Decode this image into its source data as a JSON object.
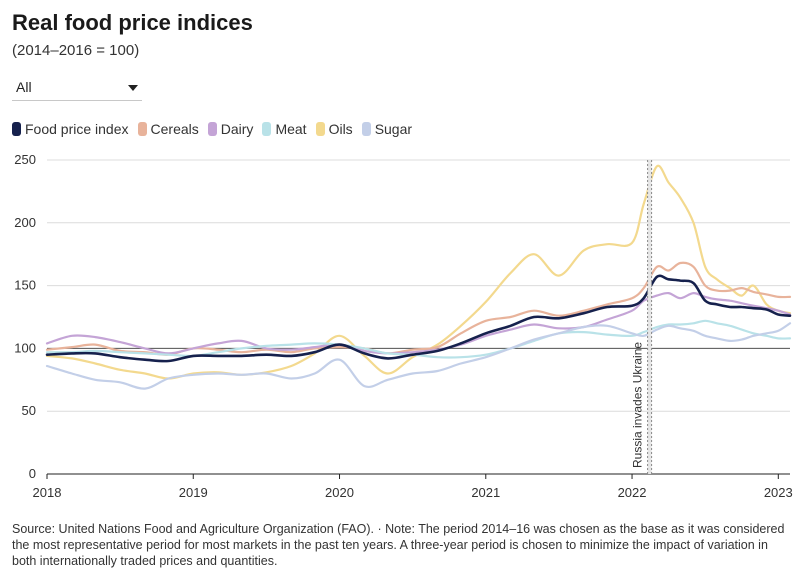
{
  "header": {
    "title": "Real food price indices",
    "subtitle": "(2014–2016 = 100)"
  },
  "filter": {
    "selected": "All"
  },
  "footer": {
    "source": "Source: United Nations Food and Agriculture Organization (FAO). · Note: The period 2014–16 was chosen as the base as it was considered the most representative period for most markets in the past ten years. A three-year period is chosen to minimize the impact of variation in both internationally traded prices and quantities."
  },
  "chart_data": {
    "type": "line",
    "title": "Real food price indices",
    "subtitle": "(2014–2016 = 100)",
    "xlabel": "",
    "ylabel": "",
    "xlim": [
      2018.0,
      2023.08
    ],
    "ylim": [
      0,
      250
    ],
    "yticks": [
      0,
      50,
      100,
      150,
      200,
      250
    ],
    "xticks": [
      {
        "value": 2018,
        "label": "2018"
      },
      {
        "value": 2019,
        "label": "2019"
      },
      {
        "value": 2020,
        "label": "2020"
      },
      {
        "value": 2021,
        "label": "2021"
      },
      {
        "value": 2022,
        "label": "2022"
      },
      {
        "value": 2023,
        "label": "2023"
      }
    ],
    "grid": "horizontal",
    "baseline": 100,
    "legend_position": "top-left",
    "annotations": [
      {
        "x": 2022.12,
        "label": "Russia invades Ukraine"
      }
    ],
    "series": [
      {
        "name": "Oils",
        "color": "#f3d98e",
        "x": [
          2018.0,
          2018.17,
          2018.33,
          2018.5,
          2018.67,
          2018.83,
          2019.0,
          2019.17,
          2019.33,
          2019.5,
          2019.67,
          2019.83,
          2020.0,
          2020.17,
          2020.33,
          2020.5,
          2020.67,
          2020.83,
          2021.0,
          2021.17,
          2021.33,
          2021.5,
          2021.67,
          2021.83,
          2022.0,
          2022.08,
          2022.17,
          2022.25,
          2022.33,
          2022.42,
          2022.5,
          2022.58,
          2022.67,
          2022.75,
          2022.83,
          2022.92,
          2023.0,
          2023.08
        ],
        "values": [
          94,
          92,
          88,
          83,
          80,
          76,
          80,
          81,
          79,
          81,
          86,
          96,
          110,
          94,
          80,
          93,
          103,
          118,
          137,
          160,
          175,
          158,
          178,
          183,
          184,
          215,
          245,
          232,
          220,
          200,
          165,
          155,
          148,
          142,
          150,
          135,
          130,
          128
        ]
      },
      {
        "name": "Cereals",
        "color": "#e8b39b",
        "x": [
          2018.0,
          2018.17,
          2018.33,
          2018.5,
          2018.67,
          2018.83,
          2019.0,
          2019.17,
          2019.33,
          2019.5,
          2019.67,
          2019.83,
          2020.0,
          2020.17,
          2020.33,
          2020.5,
          2020.67,
          2020.83,
          2021.0,
          2021.17,
          2021.33,
          2021.5,
          2021.67,
          2021.83,
          2022.0,
          2022.08,
          2022.17,
          2022.25,
          2022.33,
          2022.42,
          2022.5,
          2022.58,
          2022.67,
          2022.75,
          2022.83,
          2022.92,
          2023.0,
          2023.08
        ],
        "values": [
          99,
          101,
          103,
          98,
          97,
          95,
          100,
          99,
          97,
          99,
          97,
          100,
          101,
          100,
          96,
          99,
          101,
          112,
          122,
          125,
          130,
          126,
          130,
          135,
          140,
          148,
          165,
          162,
          168,
          165,
          150,
          146,
          146,
          148,
          145,
          143,
          141,
          141
        ]
      },
      {
        "name": "Dairy",
        "color": "#c4a4d6",
        "x": [
          2018.0,
          2018.17,
          2018.33,
          2018.5,
          2018.67,
          2018.83,
          2019.0,
          2019.17,
          2019.33,
          2019.5,
          2019.67,
          2019.83,
          2020.0,
          2020.17,
          2020.33,
          2020.5,
          2020.67,
          2020.83,
          2021.0,
          2021.17,
          2021.33,
          2021.5,
          2021.67,
          2021.83,
          2022.0,
          2022.08,
          2022.17,
          2022.25,
          2022.33,
          2022.42,
          2022.5,
          2022.58,
          2022.67,
          2022.75,
          2022.83,
          2022.92,
          2023.0,
          2023.08
        ],
        "values": [
          104,
          110,
          109,
          105,
          100,
          96,
          100,
          104,
          106,
          100,
          99,
          101,
          103,
          98,
          96,
          97,
          99,
          103,
          110,
          115,
          119,
          116,
          117,
          123,
          130,
          138,
          142,
          144,
          140,
          144,
          141,
          139,
          138,
          136,
          134,
          132,
          130,
          127
        ]
      },
      {
        "name": "Meat",
        "color": "#b9e2e8",
        "x": [
          2018.0,
          2018.17,
          2018.33,
          2018.5,
          2018.67,
          2018.83,
          2019.0,
          2019.17,
          2019.33,
          2019.5,
          2019.67,
          2019.83,
          2020.0,
          2020.17,
          2020.33,
          2020.5,
          2020.67,
          2020.83,
          2021.0,
          2021.17,
          2021.33,
          2021.5,
          2021.67,
          2021.83,
          2022.0,
          2022.08,
          2022.17,
          2022.25,
          2022.33,
          2022.42,
          2022.5,
          2022.58,
          2022.67,
          2022.75,
          2022.83,
          2022.92,
          2023.0,
          2023.08
        ],
        "values": [
          97,
          97,
          98,
          97,
          96,
          95,
          94,
          97,
          100,
          102,
          103,
          104,
          103,
          100,
          96,
          95,
          93,
          93,
          95,
          100,
          106,
          112,
          113,
          111,
          110,
          113,
          117,
          119,
          119,
          120,
          122,
          120,
          118,
          115,
          112,
          110,
          108,
          108
        ]
      },
      {
        "name": "Sugar",
        "color": "#c3cfe8",
        "x": [
          2018.0,
          2018.17,
          2018.33,
          2018.5,
          2018.67,
          2018.83,
          2019.0,
          2019.17,
          2019.33,
          2019.5,
          2019.67,
          2019.83,
          2020.0,
          2020.17,
          2020.33,
          2020.5,
          2020.67,
          2020.83,
          2021.0,
          2021.17,
          2021.33,
          2021.5,
          2021.67,
          2021.83,
          2022.0,
          2022.08,
          2022.17,
          2022.25,
          2022.33,
          2022.42,
          2022.5,
          2022.58,
          2022.67,
          2022.75,
          2022.83,
          2022.92,
          2023.0,
          2023.08
        ],
        "values": [
          86,
          80,
          75,
          73,
          68,
          76,
          79,
          80,
          79,
          80,
          76,
          80,
          91,
          70,
          75,
          80,
          82,
          88,
          93,
          100,
          107,
          112,
          117,
          118,
          112,
          110,
          115,
          118,
          116,
          114,
          110,
          108,
          106,
          107,
          110,
          112,
          114,
          120
        ]
      },
      {
        "name": "Food price index",
        "color": "#16214d",
        "x": [
          2018.0,
          2018.17,
          2018.33,
          2018.5,
          2018.67,
          2018.83,
          2019.0,
          2019.17,
          2019.33,
          2019.5,
          2019.67,
          2019.83,
          2020.0,
          2020.17,
          2020.33,
          2020.5,
          2020.67,
          2020.83,
          2021.0,
          2021.17,
          2021.33,
          2021.5,
          2021.67,
          2021.83,
          2022.0,
          2022.08,
          2022.17,
          2022.25,
          2022.33,
          2022.42,
          2022.5,
          2022.58,
          2022.67,
          2022.75,
          2022.83,
          2022.92,
          2023.0,
          2023.08
        ],
        "values": [
          95,
          96,
          96,
          93,
          91,
          90,
          94,
          94,
          94,
          95,
          94,
          97,
          103,
          96,
          92,
          95,
          98,
          104,
          112,
          118,
          125,
          124,
          128,
          133,
          134,
          140,
          157,
          155,
          154,
          152,
          138,
          135,
          133,
          133,
          132,
          131,
          127,
          126
        ]
      }
    ],
    "legend_order": [
      "Food price index",
      "Cereals",
      "Dairy",
      "Meat",
      "Oils",
      "Sugar"
    ]
  }
}
